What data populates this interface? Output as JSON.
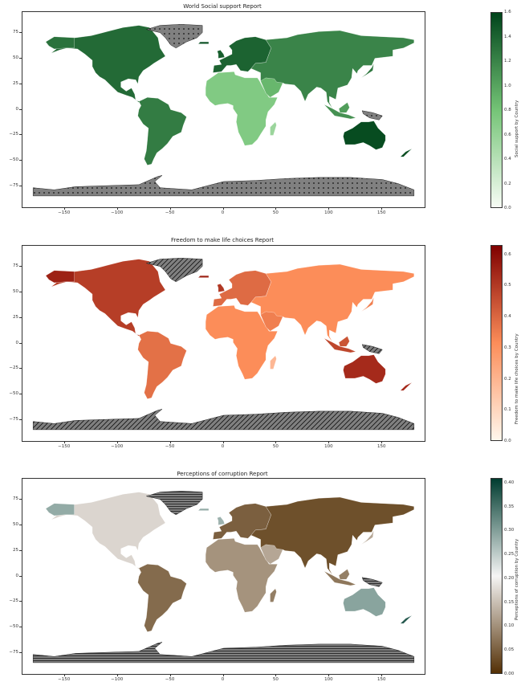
{
  "chart_data": [
    {
      "type": "choropleth",
      "title": "World Social support Report",
      "colorbar_label": "Social support by Country",
      "colormap": "Greens",
      "colorbar_range": [
        0.0,
        1.6
      ],
      "colorbar_ticks": [
        "0.0",
        "0.2",
        "0.4",
        "0.6",
        "0.8",
        "1.0",
        "1.2",
        "1.4",
        "1.6"
      ],
      "missing_hatch": "dots",
      "colors": {
        "low": "#f7fcf5",
        "mid": "#74c476",
        "high": "#00441b",
        "missing": "#808080"
      },
      "xlim": [
        -190,
        190
      ],
      "ylim": [
        -95,
        95
      ],
      "xticks": [
        "−150",
        "−100",
        "−50",
        "0",
        "50",
        "100",
        "150"
      ],
      "yticks": [
        "75",
        "50",
        "25",
        "0",
        "−25",
        "−50",
        "−75"
      ]
    },
    {
      "type": "choropleth",
      "title": "Freedom to make life choices Report",
      "colorbar_label": "Freedom to make life choices by Country",
      "colormap": "OrRd",
      "colorbar_range": [
        0.0,
        0.63
      ],
      "colorbar_ticks": [
        "0.0",
        "0.1",
        "0.2",
        "0.3",
        "0.4",
        "0.5",
        "0.6"
      ],
      "missing_hatch": "diagonal",
      "colors": {
        "low": "#fff7ec",
        "mid": "#fc8d59",
        "high": "#7f0000",
        "missing": "#808080"
      },
      "xlim": [
        -190,
        190
      ],
      "ylim": [
        -95,
        95
      ],
      "xticks": [
        "−150",
        "−100",
        "−50",
        "0",
        "50",
        "100",
        "150"
      ],
      "yticks": [
        "75",
        "50",
        "25",
        "0",
        "−25",
        "−50",
        "−75"
      ]
    },
    {
      "type": "choropleth",
      "title": "Perceptions of corruption Report",
      "colorbar_label": "Perceptions of corruption by Country",
      "colormap": "BrBG",
      "colorbar_range": [
        0.0,
        0.41
      ],
      "colorbar_ticks": [
        "0.00",
        "0.05",
        "0.10",
        "0.15",
        "0.20",
        "0.25",
        "0.30",
        "0.35",
        "0.40"
      ],
      "missing_hatch": "horizontal",
      "colors": {
        "low": "#543005",
        "mid": "#f5f5f5",
        "high": "#003c30",
        "missing": "#808080"
      },
      "xlim": [
        -190,
        190
      ],
      "ylim": [
        -95,
        95
      ],
      "xticks": [
        "−150",
        "−100",
        "−50",
        "0",
        "50",
        "100",
        "150"
      ],
      "yticks": [
        "75",
        "50",
        "25",
        "0",
        "−25",
        "−50",
        "−75"
      ]
    }
  ]
}
